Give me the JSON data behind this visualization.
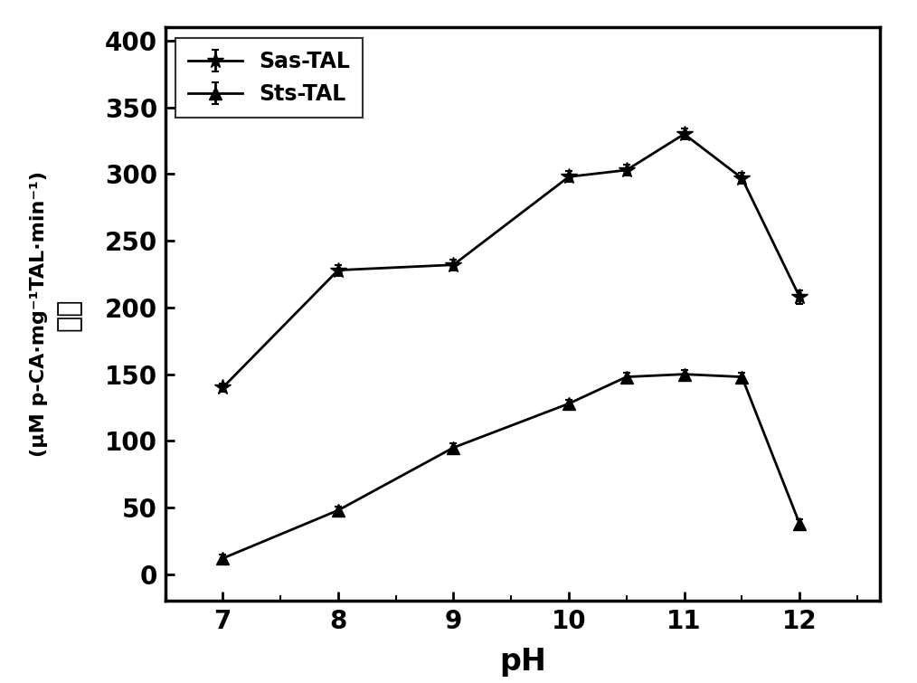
{
  "sas_tal_x": [
    7,
    8,
    9,
    10,
    10.5,
    11,
    11.5,
    12
  ],
  "sas_tal_y": [
    140,
    228,
    232,
    298,
    303,
    330,
    297,
    208
  ],
  "sas_tal_yerr": [
    3,
    4,
    4,
    4,
    4,
    4,
    4,
    5
  ],
  "sts_tal_x": [
    7,
    8,
    9,
    10,
    10.5,
    11,
    11.5,
    12
  ],
  "sts_tal_y": [
    12,
    48,
    95,
    128,
    148,
    150,
    148,
    38
  ],
  "sts_tal_yerr": [
    3,
    3,
    3,
    3,
    3,
    3,
    3,
    3
  ],
  "xlabel": "pH",
  "ylabel_unit": "(μM p-CA·mg⁻¹TAL·min⁻¹)",
  "ylabel_chinese": "活性",
  "legend_sas": "Sas-TAL",
  "legend_sts": "Sts-TAL",
  "xlim": [
    6.5,
    12.7
  ],
  "ylim": [
    -20,
    410
  ],
  "xticks": [
    7,
    8,
    9,
    10,
    11,
    12
  ],
  "yticks": [
    0,
    50,
    100,
    150,
    200,
    250,
    300,
    350,
    400
  ],
  "line_color": "#000000",
  "background_color": "#ffffff"
}
